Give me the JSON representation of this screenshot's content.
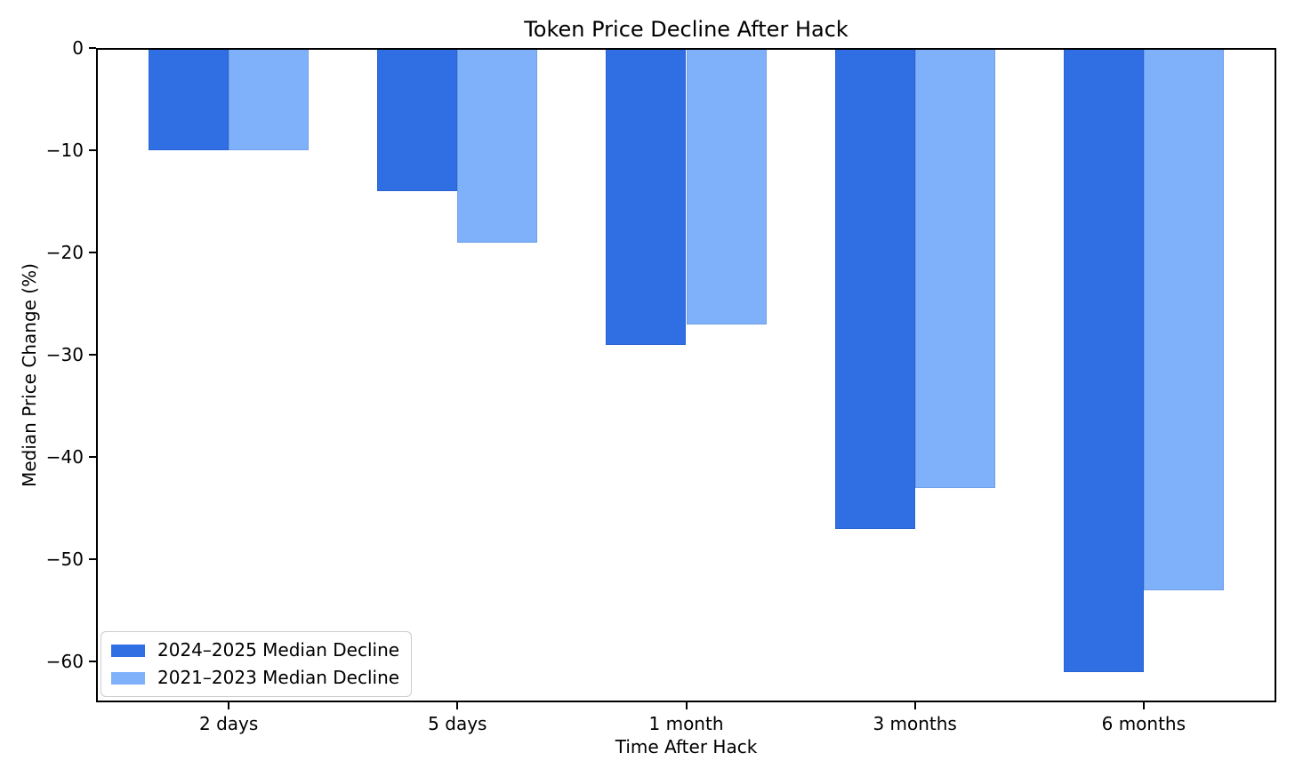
{
  "chart_data": {
    "type": "bar",
    "title": "Token Price Decline After Hack",
    "xlabel": "Time After Hack",
    "ylabel": "Median Price Change (%)",
    "categories": [
      "2 days",
      "5 days",
      "1 month",
      "3 months",
      "6 months"
    ],
    "series": [
      {
        "name": "2024–2025 Median Decline",
        "color": "#2f6ee3",
        "values": [
          -10,
          -14,
          -29,
          -47,
          -61
        ]
      },
      {
        "name": "2021–2023 Median Decline",
        "color": "#7fb1fb",
        "values": [
          -10,
          -19,
          -27,
          -43,
          -53
        ]
      }
    ],
    "ylim": [
      -64,
      0
    ],
    "xlim": [
      -0.58,
      4.58
    ],
    "yticks": [
      0,
      -10,
      -20,
      -30,
      -40,
      -50,
      -60
    ],
    "ytick_labels": [
      "0",
      "−10",
      "−20",
      "−30",
      "−40",
      "−50",
      "−60"
    ],
    "bar_width": 0.35,
    "grid": false,
    "legend_position": "lower left",
    "colors": {
      "spine": "#000000",
      "text": "#000000",
      "legend_border": "#cccccc",
      "background": "#ffffff"
    }
  }
}
